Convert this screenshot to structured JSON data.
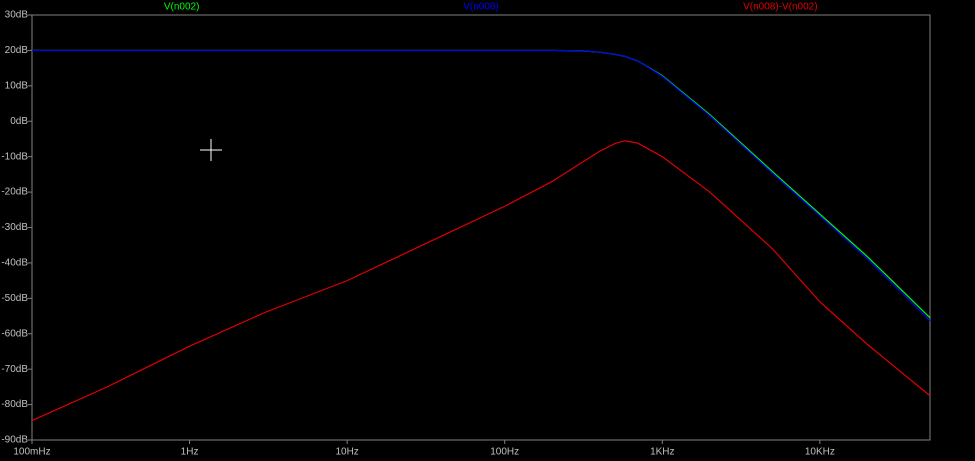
{
  "chart_data": {
    "type": "line",
    "log_x": true,
    "x": [
      0.1,
      0.3,
      1,
      3,
      10,
      30,
      100,
      200,
      300,
      400,
      500,
      580,
      700,
      1000,
      2000,
      5000,
      10000,
      20000,
      50000
    ],
    "series": [
      {
        "name": "V(n002)",
        "color": "#00ff00",
        "values": [
          20,
          20,
          20,
          20,
          20,
          20,
          20,
          20,
          19.9,
          19.5,
          18.9,
          18.3,
          17,
          12.9,
          1.9,
          -14.2,
          -26.2,
          -38.2,
          -55.5
        ]
      },
      {
        "name": "V(n008)",
        "color": "#0000ff",
        "values": [
          20,
          20,
          20,
          20,
          20,
          20,
          20,
          20,
          19.9,
          19.5,
          18.9,
          18.3,
          17,
          12.7,
          1.6,
          -14.6,
          -26.7,
          -38.8,
          -56.3
        ]
      },
      {
        "name": "V(n008)-V(n002)",
        "color": "#e00000",
        "values": [
          -84.5,
          -75,
          -63.5,
          -54,
          -45,
          -35,
          -24,
          -17,
          -12,
          -8.5,
          -6.3,
          -5.5,
          -6.2,
          -10,
          -20,
          -36,
          -51,
          -63,
          -77.5
        ]
      }
    ],
    "xlim": [
      0.1,
      50000
    ],
    "xticks": [
      {
        "value": 0.1,
        "label": "100mHz"
      },
      {
        "value": 1,
        "label": "1Hz"
      },
      {
        "value": 10,
        "label": "10Hz"
      },
      {
        "value": 100,
        "label": "100Hz"
      },
      {
        "value": 1000,
        "label": "1KHz"
      },
      {
        "value": 10000,
        "label": "10KHz"
      }
    ],
    "ylim": [
      -90,
      30
    ],
    "yticks": [
      {
        "value": 30,
        "label": "30dB"
      },
      {
        "value": 20,
        "label": "20dB"
      },
      {
        "value": 10,
        "label": "10dB"
      },
      {
        "value": 0,
        "label": "0dB"
      },
      {
        "value": -10,
        "label": "-10dB"
      },
      {
        "value": -20,
        "label": "-20dB"
      },
      {
        "value": -30,
        "label": "-30dB"
      },
      {
        "value": -40,
        "label": "-40dB"
      },
      {
        "value": -50,
        "label": "-50dB"
      },
      {
        "value": -60,
        "label": "-60dB"
      },
      {
        "value": -70,
        "label": "-70dB"
      },
      {
        "value": -80,
        "label": "-80dB"
      },
      {
        "value": -90,
        "label": "-90dB"
      }
    ]
  }
}
